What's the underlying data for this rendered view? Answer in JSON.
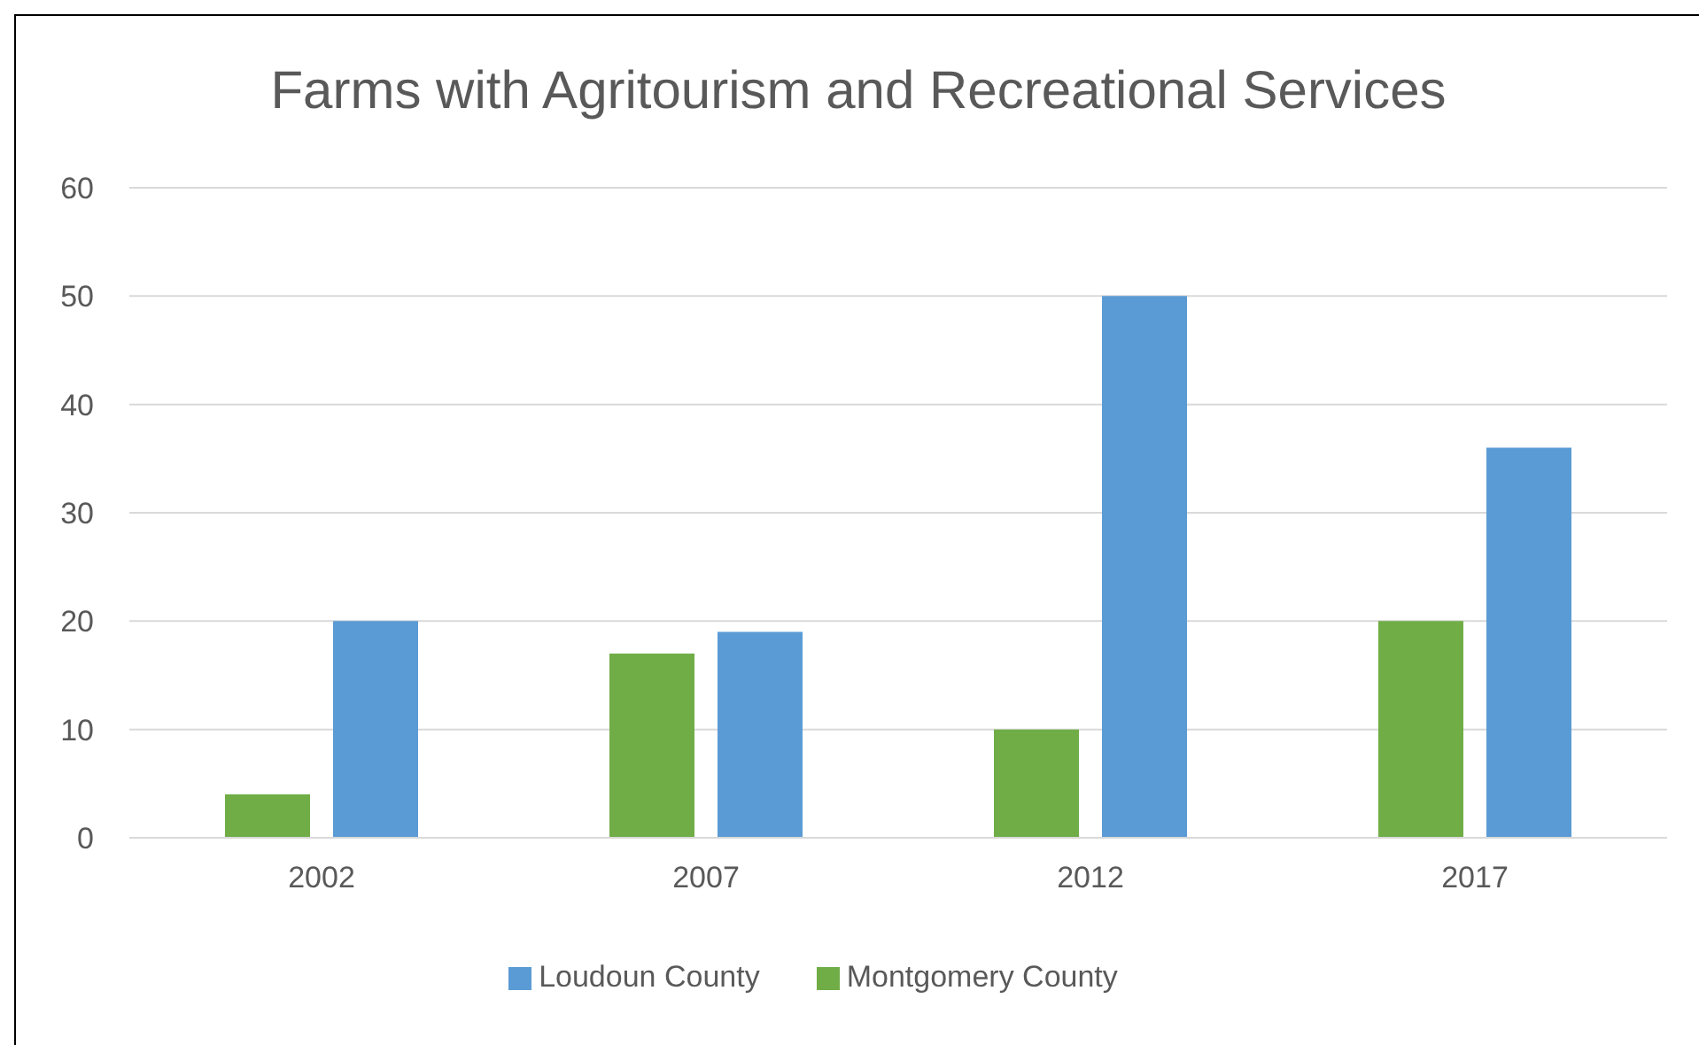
{
  "chart_data": {
    "type": "bar",
    "title": "Farms with Agritourism and Recreational Services",
    "categories": [
      "2002",
      "2007",
      "2012",
      "2017"
    ],
    "series": [
      {
        "name": "Montgomery County",
        "color": "#70ad47",
        "values": [
          4,
          17,
          10,
          20
        ]
      },
      {
        "name": "Loudoun County",
        "color": "#5b9bd5",
        "values": [
          20,
          19,
          50,
          36
        ]
      }
    ],
    "ylim": [
      0,
      60
    ],
    "yticks": [
      0,
      10,
      20,
      30,
      40,
      50,
      60
    ],
    "grid": "y",
    "legend": "bottom"
  }
}
